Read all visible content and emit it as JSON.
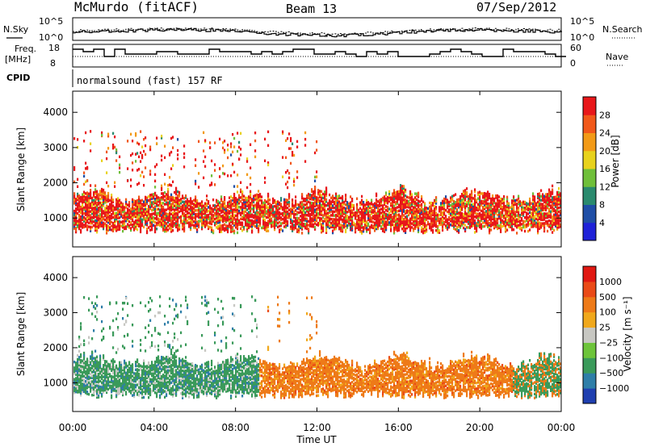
{
  "header": {
    "station": "McMurdo (fitACF)",
    "beam": "Beam 13",
    "date": "07/Sep/2012"
  },
  "noise_panel": {
    "left_label": "N.Sky",
    "right_label": "N.Search",
    "left_ticks": [
      "10^5",
      "10^0"
    ],
    "right_ticks": [
      "10^5",
      "10^0"
    ]
  },
  "freq_panel": {
    "left_label_line1": "Freq.",
    "left_label_line2": "[MHz]",
    "right_label": "Nave",
    "left_ticks": [
      "18",
      "8"
    ],
    "right_ticks": [
      "60",
      "0"
    ]
  },
  "cpid": {
    "label": "CPID",
    "text": "normalsound (fast) 157 RF"
  },
  "chart_data": [
    {
      "type": "heatmap",
      "title": "",
      "quantity": "Power",
      "xlabel": "Time UT",
      "ylabel": "Slant Range [km]",
      "xlim": [
        "00:00",
        "24:00"
      ],
      "ylim": [
        180,
        4600
      ],
      "y_ticks": [
        "1000",
        "2000",
        "3000",
        "4000"
      ],
      "colorbar": {
        "label": "Power [dB]",
        "ticks": [
          "4",
          "8",
          "12",
          "16",
          "20",
          "24",
          "28"
        ],
        "range": [
          0,
          30
        ],
        "colors": [
          "#1f22d8",
          "#1f4ea6",
          "#2a8a6e",
          "#6fbf3a",
          "#e8d21c",
          "#f29a17",
          "#f1581a",
          "#e8171a"
        ]
      }
    },
    {
      "type": "heatmap",
      "title": "",
      "quantity": "Velocity",
      "xlabel": "Time UT",
      "ylabel": "Slant Range [km]",
      "xlim": [
        "00:00",
        "24:00"
      ],
      "ylim": [
        180,
        4600
      ],
      "y_ticks": [
        "1000",
        "2000",
        "3000",
        "4000"
      ],
      "colorbar": {
        "label": "Velocity [m s⁻¹]",
        "ticks": [
          "1000",
          "500",
          "100",
          "25",
          "−25",
          "−100",
          "−500",
          "−1000"
        ],
        "colors": [
          "#1f3fb0",
          "#2e7ea8",
          "#3a9a5a",
          "#6dc43a",
          "#c7c7c2",
          "#f0a81c",
          "#ee7a18",
          "#ea4a17",
          "#e01812"
        ]
      }
    }
  ],
  "x_axis": {
    "ticks": [
      "00:00",
      "04:00",
      "08:00",
      "12:00",
      "16:00",
      "20:00",
      "00:00"
    ],
    "label": "Time UT"
  }
}
